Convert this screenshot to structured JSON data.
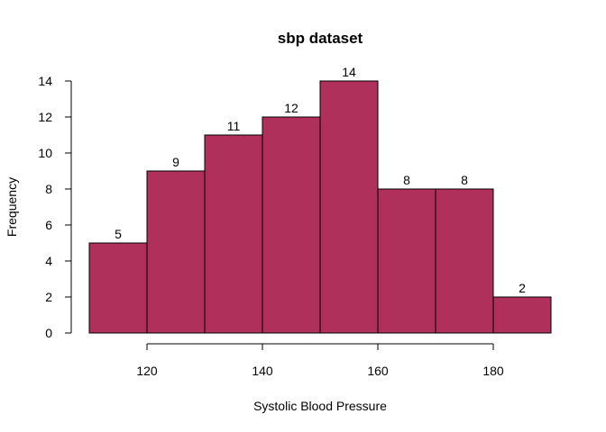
{
  "chart_data": {
    "type": "bar",
    "title": "sbp dataset",
    "xlabel": "Systolic Blood Pressure",
    "ylabel": "Frequency",
    "bins": [
      {
        "from": 110,
        "to": 120,
        "count": 5
      },
      {
        "from": 120,
        "to": 130,
        "count": 9
      },
      {
        "from": 130,
        "to": 140,
        "count": 11
      },
      {
        "from": 140,
        "to": 150,
        "count": 12
      },
      {
        "from": 150,
        "to": 160,
        "count": 14
      },
      {
        "from": 160,
        "to": 170,
        "count": 8
      },
      {
        "from": 170,
        "to": 180,
        "count": 8
      },
      {
        "from": 180,
        "to": 190,
        "count": 2
      }
    ],
    "xticks": [
      120,
      140,
      160,
      180
    ],
    "yticks": [
      0,
      2,
      4,
      6,
      8,
      10,
      12,
      14
    ],
    "xlim": [
      110,
      190
    ],
    "ylim": [
      0,
      14
    ],
    "bar_color": "#B0305C",
    "grid": false,
    "legend": "none"
  }
}
